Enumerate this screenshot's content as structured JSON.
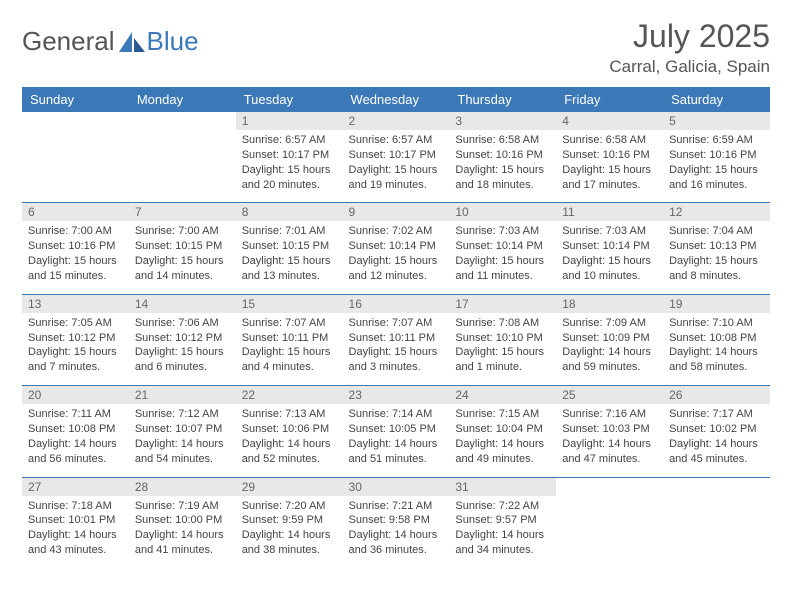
{
  "brand": {
    "part1": "General",
    "part2": "Blue"
  },
  "title": "July 2025",
  "location": "Carral, Galicia, Spain",
  "colors": {
    "header_bg": "#3b78b8",
    "header_fg": "#ffffff",
    "daynum_bg": "#e8e8e8",
    "daynum_fg": "#666666",
    "border": "#3b78b8",
    "text": "#444444"
  },
  "weekdays": [
    "Sunday",
    "Monday",
    "Tuesday",
    "Wednesday",
    "Thursday",
    "Friday",
    "Saturday"
  ],
  "weeks": [
    [
      null,
      null,
      {
        "n": "1",
        "sr": "6:57 AM",
        "ss": "10:17 PM",
        "d": "15 hours and 20 minutes."
      },
      {
        "n": "2",
        "sr": "6:57 AM",
        "ss": "10:17 PM",
        "d": "15 hours and 19 minutes."
      },
      {
        "n": "3",
        "sr": "6:58 AM",
        "ss": "10:16 PM",
        "d": "15 hours and 18 minutes."
      },
      {
        "n": "4",
        "sr": "6:58 AM",
        "ss": "10:16 PM",
        "d": "15 hours and 17 minutes."
      },
      {
        "n": "5",
        "sr": "6:59 AM",
        "ss": "10:16 PM",
        "d": "15 hours and 16 minutes."
      }
    ],
    [
      {
        "n": "6",
        "sr": "7:00 AM",
        "ss": "10:16 PM",
        "d": "15 hours and 15 minutes."
      },
      {
        "n": "7",
        "sr": "7:00 AM",
        "ss": "10:15 PM",
        "d": "15 hours and 14 minutes."
      },
      {
        "n": "8",
        "sr": "7:01 AM",
        "ss": "10:15 PM",
        "d": "15 hours and 13 minutes."
      },
      {
        "n": "9",
        "sr": "7:02 AM",
        "ss": "10:14 PM",
        "d": "15 hours and 12 minutes."
      },
      {
        "n": "10",
        "sr": "7:03 AM",
        "ss": "10:14 PM",
        "d": "15 hours and 11 minutes."
      },
      {
        "n": "11",
        "sr": "7:03 AM",
        "ss": "10:14 PM",
        "d": "15 hours and 10 minutes."
      },
      {
        "n": "12",
        "sr": "7:04 AM",
        "ss": "10:13 PM",
        "d": "15 hours and 8 minutes."
      }
    ],
    [
      {
        "n": "13",
        "sr": "7:05 AM",
        "ss": "10:12 PM",
        "d": "15 hours and 7 minutes."
      },
      {
        "n": "14",
        "sr": "7:06 AM",
        "ss": "10:12 PM",
        "d": "15 hours and 6 minutes."
      },
      {
        "n": "15",
        "sr": "7:07 AM",
        "ss": "10:11 PM",
        "d": "15 hours and 4 minutes."
      },
      {
        "n": "16",
        "sr": "7:07 AM",
        "ss": "10:11 PM",
        "d": "15 hours and 3 minutes."
      },
      {
        "n": "17",
        "sr": "7:08 AM",
        "ss": "10:10 PM",
        "d": "15 hours and 1 minute."
      },
      {
        "n": "18",
        "sr": "7:09 AM",
        "ss": "10:09 PM",
        "d": "14 hours and 59 minutes."
      },
      {
        "n": "19",
        "sr": "7:10 AM",
        "ss": "10:08 PM",
        "d": "14 hours and 58 minutes."
      }
    ],
    [
      {
        "n": "20",
        "sr": "7:11 AM",
        "ss": "10:08 PM",
        "d": "14 hours and 56 minutes."
      },
      {
        "n": "21",
        "sr": "7:12 AM",
        "ss": "10:07 PM",
        "d": "14 hours and 54 minutes."
      },
      {
        "n": "22",
        "sr": "7:13 AM",
        "ss": "10:06 PM",
        "d": "14 hours and 52 minutes."
      },
      {
        "n": "23",
        "sr": "7:14 AM",
        "ss": "10:05 PM",
        "d": "14 hours and 51 minutes."
      },
      {
        "n": "24",
        "sr": "7:15 AM",
        "ss": "10:04 PM",
        "d": "14 hours and 49 minutes."
      },
      {
        "n": "25",
        "sr": "7:16 AM",
        "ss": "10:03 PM",
        "d": "14 hours and 47 minutes."
      },
      {
        "n": "26",
        "sr": "7:17 AM",
        "ss": "10:02 PM",
        "d": "14 hours and 45 minutes."
      }
    ],
    [
      {
        "n": "27",
        "sr": "7:18 AM",
        "ss": "10:01 PM",
        "d": "14 hours and 43 minutes."
      },
      {
        "n": "28",
        "sr": "7:19 AM",
        "ss": "10:00 PM",
        "d": "14 hours and 41 minutes."
      },
      {
        "n": "29",
        "sr": "7:20 AM",
        "ss": "9:59 PM",
        "d": "14 hours and 38 minutes."
      },
      {
        "n": "30",
        "sr": "7:21 AM",
        "ss": "9:58 PM",
        "d": "14 hours and 36 minutes."
      },
      {
        "n": "31",
        "sr": "7:22 AM",
        "ss": "9:57 PM",
        "d": "14 hours and 34 minutes."
      },
      null,
      null
    ]
  ],
  "labels": {
    "sunrise": "Sunrise:",
    "sunset": "Sunset:",
    "daylight": "Daylight:"
  }
}
